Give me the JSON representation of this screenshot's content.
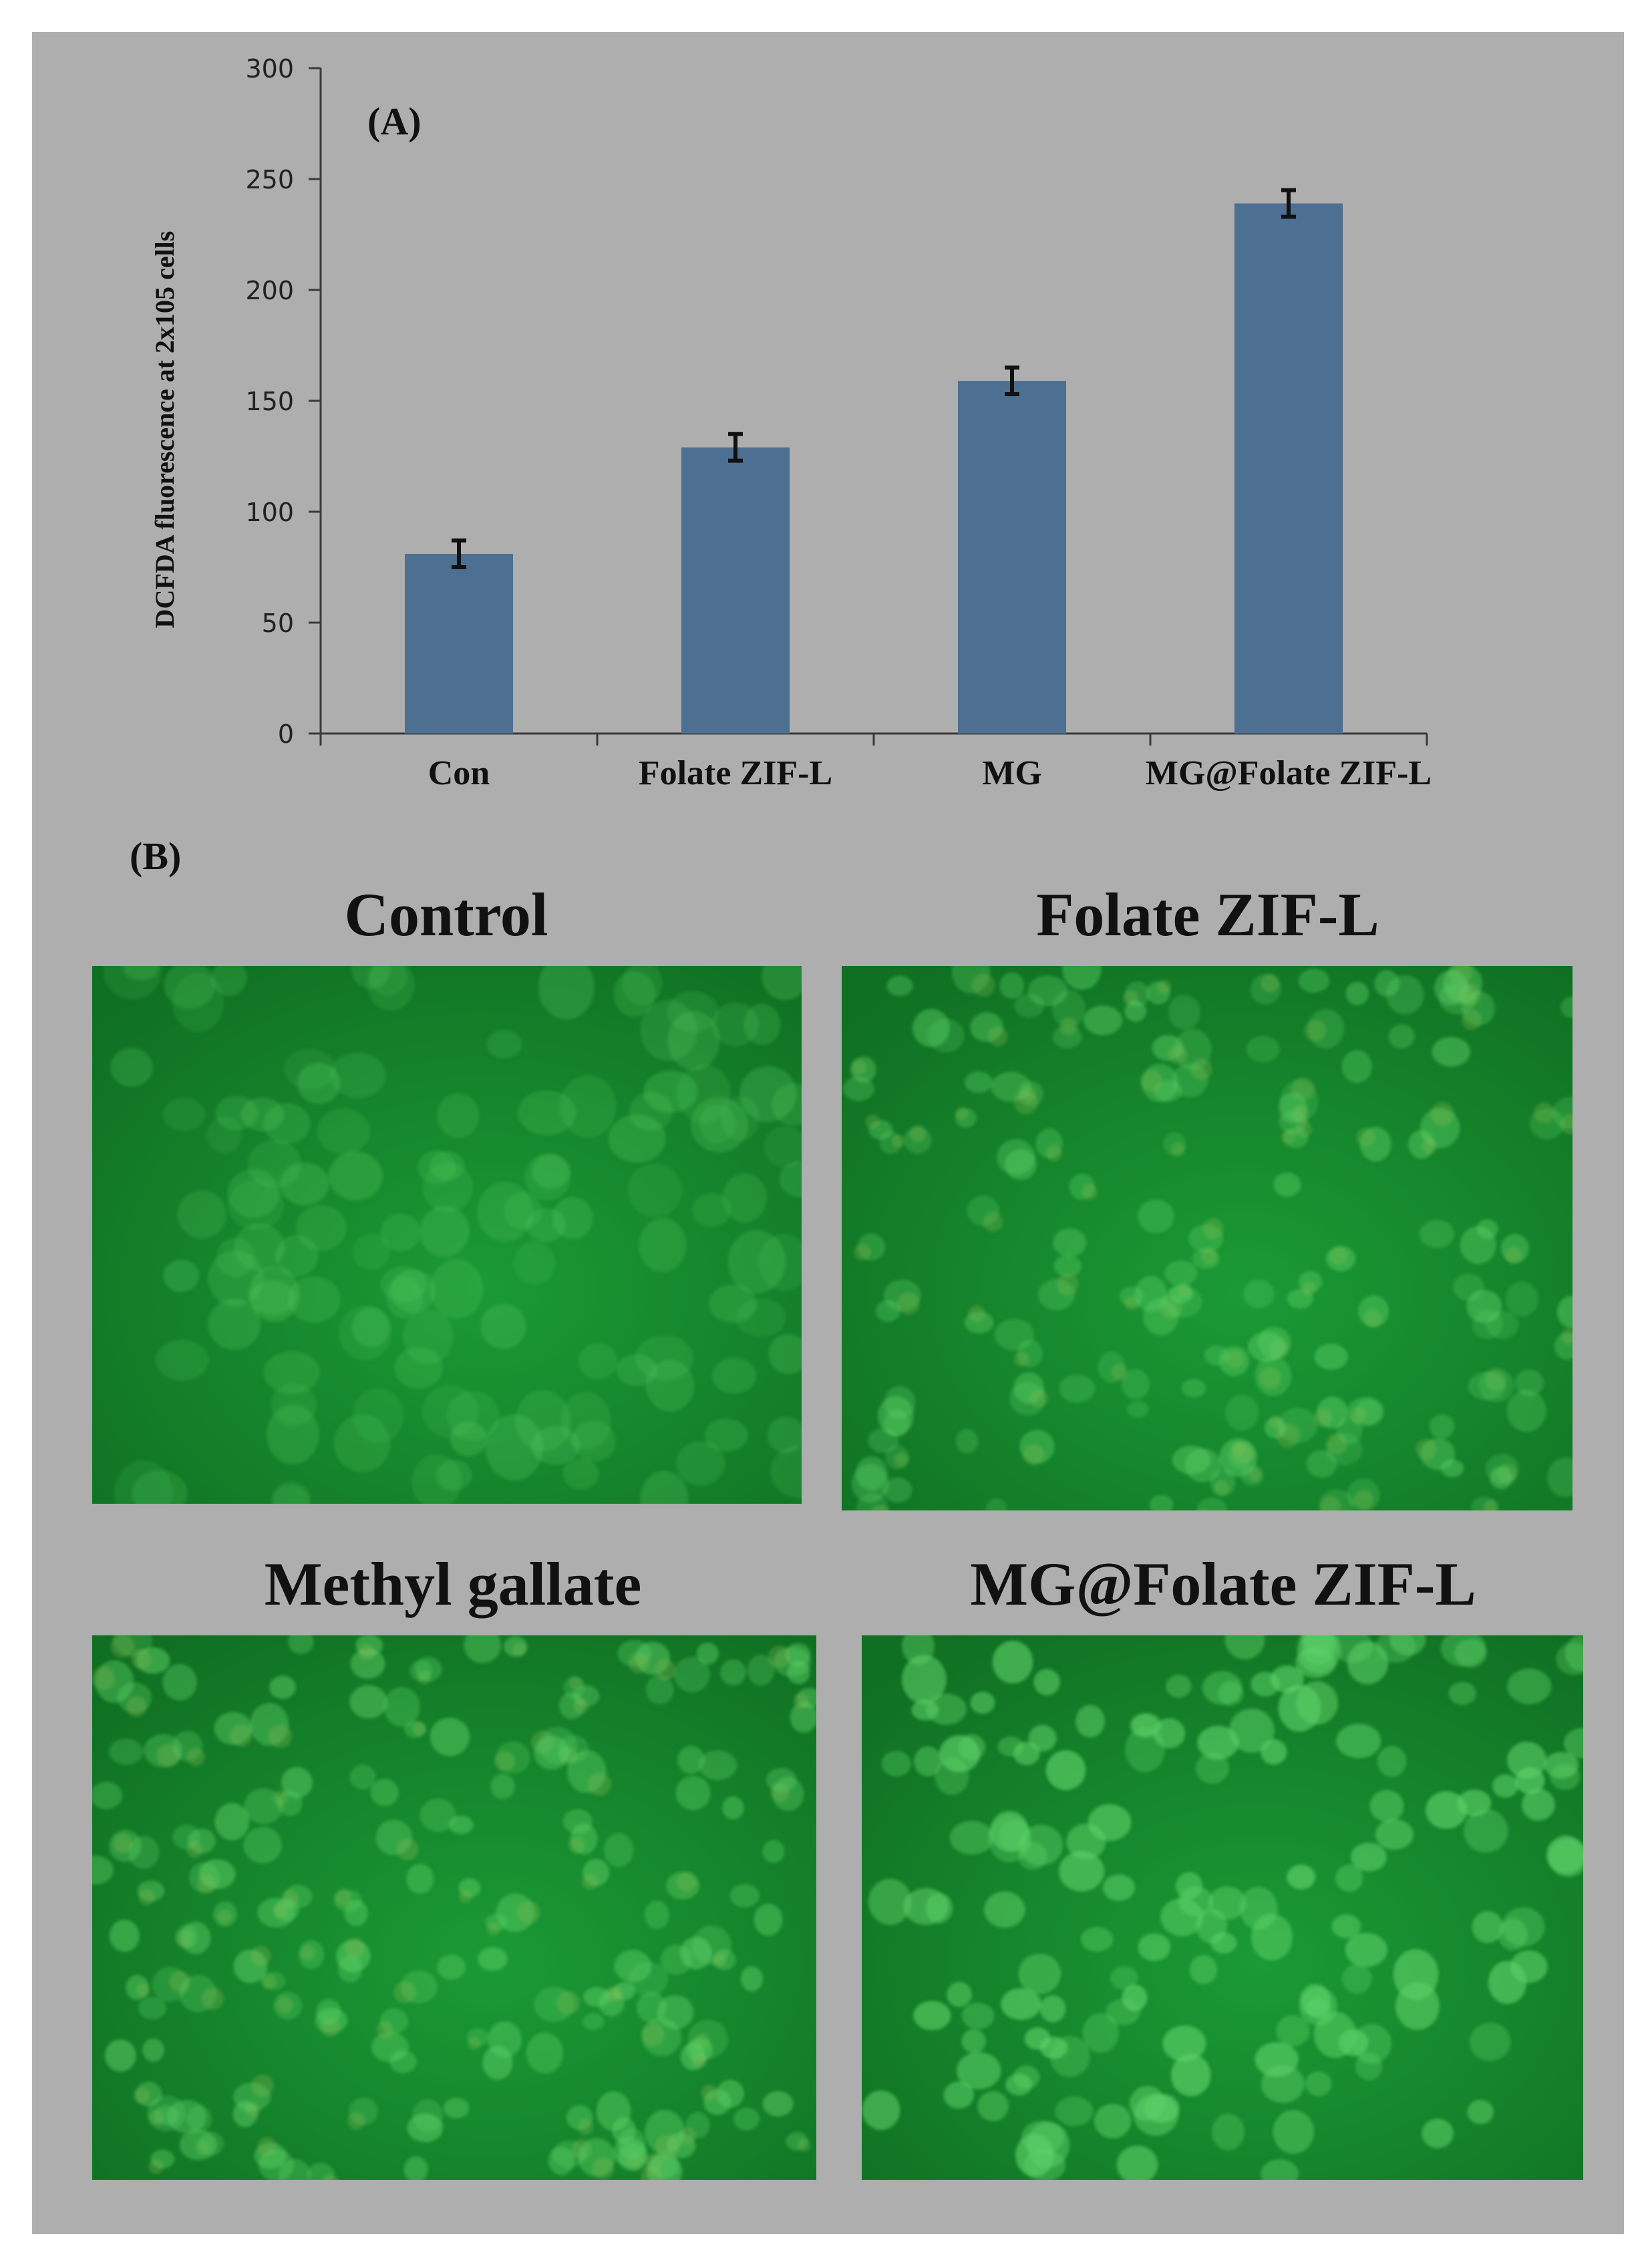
{
  "panel_a_label": "(A)",
  "panel_b_label": "(B)",
  "colors": {
    "background": "#aeaeae",
    "bar": "#4d6f91",
    "axis": "#3a3a3a",
    "micro_base": "#1b9a35",
    "micro_dark": "#0f6f22",
    "cell": "#5fd36a"
  },
  "chart_data": {
    "type": "bar",
    "ylabel": "DCFDA fluorescence at 2x105 cells",
    "ylim": [
      0,
      300
    ],
    "yticks": [
      0,
      50,
      100,
      150,
      200,
      250,
      300
    ],
    "grid": false,
    "categories": [
      "Con",
      "Folate ZIF-L",
      "MG",
      "MG@Folate ZIF-L"
    ],
    "values": [
      81,
      129,
      159,
      239
    ],
    "errors": [
      6,
      6,
      6,
      6
    ]
  },
  "micrographs": [
    {
      "title": "Control"
    },
    {
      "title": "Folate ZIF-L"
    },
    {
      "title": "Methyl gallate"
    },
    {
      "title": "MG@Folate ZIF-L"
    }
  ]
}
